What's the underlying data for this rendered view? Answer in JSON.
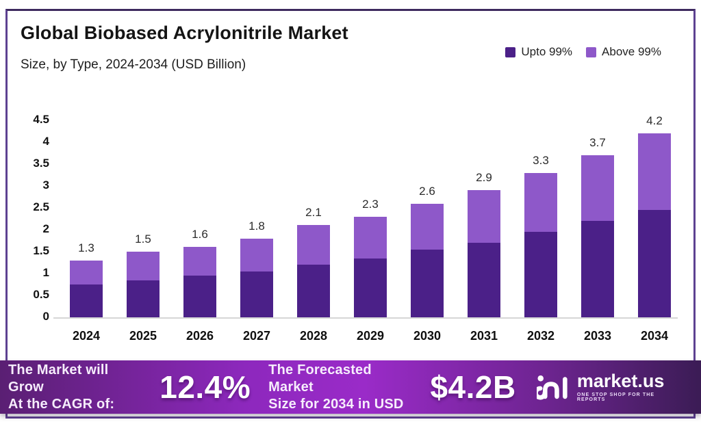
{
  "header": {
    "title": "Global Biobased Acrylonitrile Market",
    "subtitle": "Size, by Type, 2024-2034 (USD Billion)"
  },
  "legend": {
    "items": [
      {
        "label": "Upto 99%",
        "color": "#4b2088"
      },
      {
        "label": "Above 99%",
        "color": "#8e58c9"
      }
    ]
  },
  "chart_data": {
    "type": "bar",
    "stacked": true,
    "title": "Global Biobased Acrylonitrile Market Size, by Type, 2024-2034 (USD Billion)",
    "categories": [
      "2024",
      "2025",
      "2026",
      "2027",
      "2028",
      "2029",
      "2030",
      "2031",
      "2032",
      "2033",
      "2034"
    ],
    "series": [
      {
        "name": "Upto 99%",
        "color": "#4b2088",
        "values": [
          0.75,
          0.85,
          0.95,
          1.05,
          1.2,
          1.35,
          1.55,
          1.7,
          1.95,
          2.2,
          2.45
        ]
      },
      {
        "name": "Above 99%",
        "color": "#8e58c9",
        "values": [
          0.55,
          0.65,
          0.65,
          0.75,
          0.9,
          0.95,
          1.05,
          1.2,
          1.35,
          1.5,
          1.75
        ]
      }
    ],
    "totals": [
      "1.3",
      "1.5",
      "1.6",
      "1.8",
      "2.1",
      "2.3",
      "2.6",
      "2.9",
      "3.3",
      "3.7",
      "4.2"
    ],
    "ylim": [
      0,
      4.5
    ],
    "yticks": [
      "0",
      "0.5",
      "1",
      "1.5",
      "2",
      "2.5",
      "3",
      "3.5",
      "4",
      "4.5"
    ],
    "xlabel": "",
    "ylabel": "",
    "grid": false,
    "legend_position": "top-right"
  },
  "banner": {
    "cagr_label": [
      "The Market will Grow",
      "At the CAGR of:"
    ],
    "cagr_value": "12.4%",
    "forecast_label": [
      "The Forecasted Market",
      "Size for 2034 in USD"
    ],
    "forecast_value": "$4.2B",
    "logo": {
      "name": "market.us",
      "tagline": "ONE STOP SHOP FOR THE REPORTS"
    }
  },
  "colors": {
    "bar_dark": "#4b2088",
    "bar_light": "#8e58c9",
    "banner_left": "#5a1f73",
    "banner_mid": "#9a2bc8",
    "banner_right": "#3b1c55",
    "frame_border": "#5d4191",
    "axis_line": "#d6d6d6"
  }
}
